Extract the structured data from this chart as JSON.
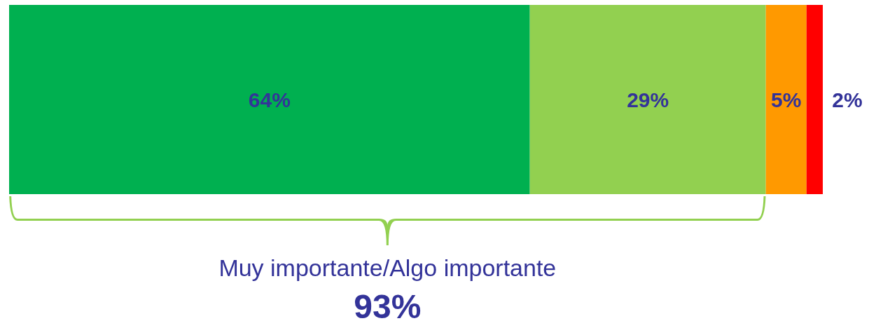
{
  "chart_data": {
    "type": "bar",
    "orientation": "horizontal",
    "stacked": true,
    "categories": [
      null
    ],
    "series": [
      {
        "color": "#00b050",
        "values": [
          64
        ],
        "value_labels": [
          "64%"
        ]
      },
      {
        "color": "#92d050",
        "values": [
          29
        ],
        "value_labels": [
          "29%"
        ]
      },
      {
        "color": "#ff9900",
        "values": [
          5
        ],
        "value_labels": [
          "5%"
        ]
      },
      {
        "color": "#ff0000",
        "values": [
          2
        ],
        "value_labels": [
          "2%"
        ]
      }
    ],
    "legend": false,
    "grid": false,
    "annotations": [
      "Muy importante/Algo importante",
      "93%"
    ]
  }
}
